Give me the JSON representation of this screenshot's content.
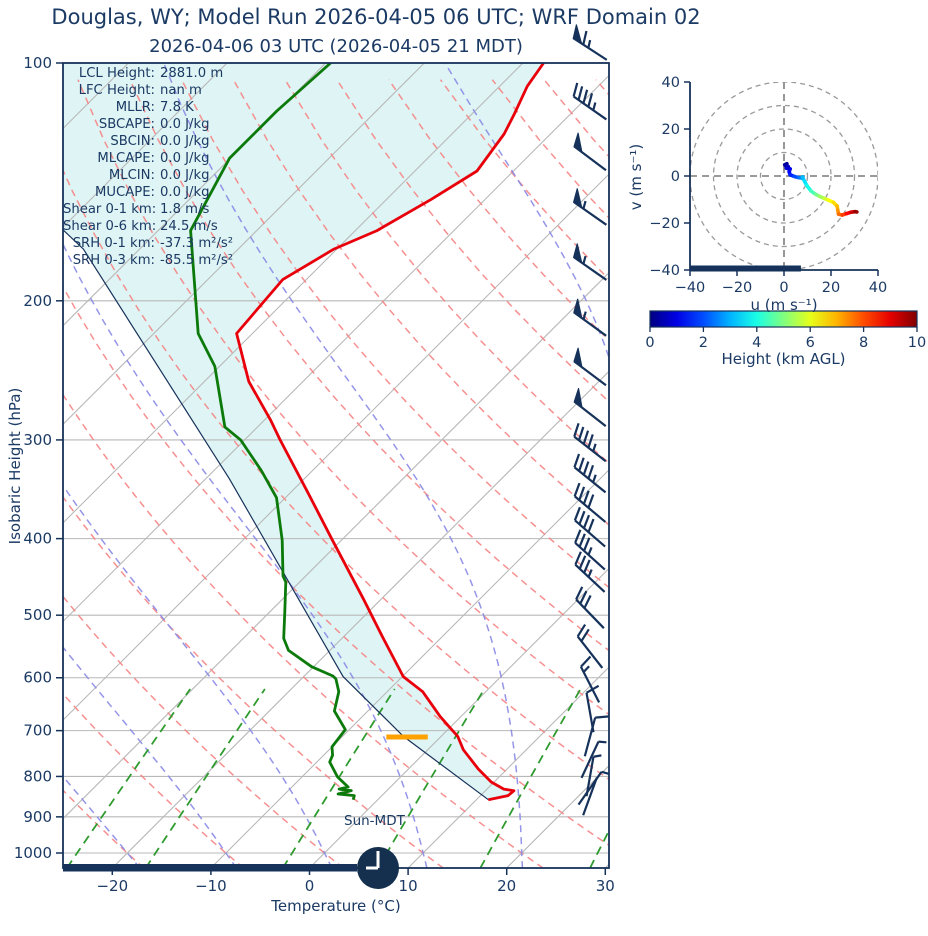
{
  "title": "Douglas, WY; Model Run 2026-04-05 06 UTC; WRF Domain 02",
  "subtitle": "2026-04-06 03 UTC  (2026-04-05 21 MDT)",
  "colors": {
    "text": "#1b3a64",
    "spine": "#16325a",
    "temperature": "#e8000b",
    "dewpoint": "#0b7a0b",
    "parcel": "#16325a",
    "shade": "#dff4f4",
    "isotherm": "#b8b8b8",
    "isobar": "#b8b8b8",
    "dry_adiabat": "#f58484",
    "moist_adiabat": "#8a8ae6",
    "mixing_ratio": "#2f9b2f",
    "lcl_marker": "#ffa200",
    "barb": "#16325a",
    "hodo_grid": "#999999",
    "clock": "#14304e"
  },
  "chart_data": [
    {
      "type": "line",
      "name": "skewt-sounding",
      "xlabel": "Temperature (°C)",
      "ylabel": "Isobaric Height (hPa)",
      "x_tick_labels": [
        "−20",
        "−10",
        "0",
        "10",
        "20",
        "30"
      ],
      "x_tick_values": [
        -20,
        -10,
        0,
        10,
        20,
        30
      ],
      "y_tick_values": [
        100,
        200,
        300,
        400,
        500,
        600,
        700,
        800,
        900,
        1000
      ],
      "xlim_c": [
        -25.0,
        30.4
      ],
      "pressure_top_hpa": 100,
      "pressure_bottom_hpa": 1045,
      "skew_deg": 45,
      "series": [
        {
          "name": "temperature",
          "points_p_t": [
            [
              100,
              -57.9
            ],
            [
              107,
              -57.2
            ],
            [
              116,
              -55.7
            ],
            [
              123,
              -54.7
            ],
            [
              137,
              -53.7
            ],
            [
              149,
              -55.5
            ],
            [
              163,
              -57.8
            ],
            [
              172,
              -60.3
            ],
            [
              188,
              -62.4
            ],
            [
              220,
              -61.6
            ],
            [
              253,
              -55.5
            ],
            [
              283,
              -49.4
            ],
            [
              300,
              -46.4
            ],
            [
              350,
              -38.2
            ],
            [
              402,
              -30.9
            ],
            [
              478,
              -21.7
            ],
            [
              532,
              -16.1
            ],
            [
              598,
              -9.9
            ],
            [
              625,
              -6.4
            ],
            [
              672,
              -2.1
            ],
            [
              712,
              1.7
            ],
            [
              740,
              3.6
            ],
            [
              783,
              7.1
            ],
            [
              813,
              9.7
            ],
            [
              830,
              11.7
            ],
            [
              834,
              12.9
            ],
            [
              846,
              12.8
            ],
            [
              856,
              11.2
            ]
          ]
        },
        {
          "name": "dewpoint",
          "points_p_t": [
            [
              100,
              -79.5
            ],
            [
              115,
              -80.1
            ],
            [
              132,
              -80.1
            ],
            [
              163,
              -76.7
            ],
            [
              220,
              -65.5
            ],
            [
              242,
              -60.5
            ],
            [
              289,
              -53.3
            ],
            [
              300,
              -50.4
            ],
            [
              328,
              -45.2
            ],
            [
              355,
              -40.9
            ],
            [
              402,
              -36.0
            ],
            [
              446,
              -32.3
            ],
            [
              454,
              -31.4
            ],
            [
              495,
              -28.5
            ],
            [
              535,
              -25.9
            ],
            [
              554,
              -24.2
            ],
            [
              581,
              -20.2
            ],
            [
              597,
              -17.1
            ],
            [
              602,
              -16.5
            ],
            [
              625,
              -14.9
            ],
            [
              661,
              -13.4
            ],
            [
              698,
              -10.4
            ],
            [
              734,
              -10.0
            ],
            [
              752,
              -9.1
            ],
            [
              767,
              -8.7
            ],
            [
              801,
              -6.4
            ],
            [
              825,
              -4.3
            ],
            [
              830,
              -5.0
            ],
            [
              834,
              -3.6
            ],
            [
              842,
              -4.6
            ],
            [
              846,
              -2.8
            ],
            [
              856,
              -2.5
            ]
          ]
        },
        {
          "name": "parcel",
          "points_p_t": [
            [
              162,
              -90.0
            ],
            [
              172,
              -85.7
            ],
            [
              336,
              -47.6
            ],
            [
              598,
              -16.0
            ],
            [
              712,
              -3.8
            ],
            [
              856,
              11.2
            ]
          ]
        }
      ],
      "lcl_marker": {
        "pressure_hpa": 713,
        "temp_c": -3.4,
        "halfwidth_c": 2.1
      },
      "wind_barbs_p_kt_dir": [
        [
          96,
          65,
          303
        ],
        [
          114,
          45,
          305
        ],
        [
          132,
          50,
          307
        ],
        [
          155,
          55,
          305
        ],
        [
          182,
          58,
          305
        ],
        [
          214,
          55,
          306
        ],
        [
          247,
          52,
          307
        ],
        [
          278,
          50,
          308
        ],
        [
          308,
          48,
          308
        ],
        [
          337,
          45,
          309
        ],
        [
          367,
          42,
          310
        ],
        [
          394,
          40,
          311
        ],
        [
          421,
          38,
          312
        ],
        [
          449,
          35,
          313
        ],
        [
          498,
          30,
          316
        ],
        [
          557,
          22,
          322
        ],
        [
          612,
          15,
          333
        ],
        [
          664,
          12,
          350
        ],
        [
          713,
          10,
          15
        ],
        [
          762,
          8,
          25
        ],
        [
          800,
          6,
          10
        ],
        [
          828,
          5,
          35
        ],
        [
          848,
          4,
          20
        ]
      ],
      "background": {
        "isobars_hpa": {
          "min": 100,
          "max": 1000,
          "step": 100
        },
        "isotherms_c": {
          "min": -120,
          "max": 30,
          "step": 10
        },
        "dry_adiabats_theta_c": {
          "min": -40,
          "max": 150,
          "step": 10
        },
        "moist_adiabats_t1000_c": {
          "min": -40,
          "max": 40,
          "step": 10
        },
        "mixing_ratio_g_kg": [
          0.5,
          1,
          3,
          6,
          12,
          24
        ]
      },
      "stats": [
        {
          "label": "LCL Height:",
          "value": "2881.0 m"
        },
        {
          "label": "LFC Height:",
          "value": "nan m"
        },
        {
          "label": "MLLR:",
          "value": "7.8 K"
        },
        {
          "label": "SBCAPE:",
          "value": "0.0 J/kg"
        },
        {
          "label": "SBCIN:",
          "value": "0.0 J/kg"
        },
        {
          "label": "MLCAPE:",
          "value": "0.0 J/kg"
        },
        {
          "label": "MLCIN:",
          "value": "0.0 J/kg"
        },
        {
          "label": "MUCAPE:",
          "value": "0.0 J/kg"
        },
        {
          "label": "Shear 0-1 km:",
          "value": "1.8 m/s"
        },
        {
          "label": "Shear 0-6 km:",
          "value": "24.5 m/s"
        },
        {
          "label": "SRH 0-1 km:",
          "value": "-37.3 m²/s²"
        },
        {
          "label": "SRH 0-3 km:",
          "value": "-85.5 m²/s²"
        }
      ],
      "sun_label": "Sun-MDT",
      "clock_time": "21:00"
    },
    {
      "type": "line",
      "name": "hodograph",
      "xlabel": "u (m s⁻¹)",
      "ylabel": "v (m s⁻¹)",
      "tick_labels": [
        "−40",
        "−20",
        "0",
        "20",
        "40"
      ],
      "tick_values": [
        -40,
        -20,
        0,
        20,
        40
      ],
      "ring_radii_ms": [
        10,
        20,
        30,
        40
      ],
      "ground_bar_u_ms": [
        -40,
        7.2
      ],
      "trace_u_v_km": [
        [
          0.3,
          4.8,
          0.0
        ],
        [
          1.2,
          5.2,
          0.15
        ],
        [
          0.6,
          4.4,
          0.3
        ],
        [
          1.8,
          4.0,
          0.5
        ],
        [
          1.0,
          3.3,
          0.7
        ],
        [
          2.6,
          3.0,
          0.9
        ],
        [
          2.2,
          1.8,
          1.1
        ],
        [
          2.6,
          0.5,
          1.4
        ],
        [
          4.4,
          -0.2,
          1.8
        ],
        [
          6.3,
          -0.7,
          2.2
        ],
        [
          7.6,
          -0.9,
          2.6
        ],
        [
          7.9,
          -0.4,
          2.9
        ],
        [
          8.7,
          -2.2,
          3.3
        ],
        [
          9.8,
          -4.2,
          3.7
        ],
        [
          11.5,
          -6.4,
          4.2
        ],
        [
          13.5,
          -7.8,
          4.7
        ],
        [
          15.2,
          -8.7,
          5.1
        ],
        [
          17.3,
          -9.6,
          5.6
        ],
        [
          18.9,
          -10.3,
          6.0
        ],
        [
          21.0,
          -11.2,
          6.4
        ],
        [
          22.6,
          -12.8,
          6.8
        ],
        [
          22.9,
          -14.6,
          7.1
        ],
        [
          23.2,
          -16.2,
          7.5
        ],
        [
          24.8,
          -16.6,
          7.9
        ],
        [
          26.6,
          -16.0,
          8.4
        ],
        [
          28.5,
          -15.4,
          9.0
        ],
        [
          30.2,
          -15.2,
          9.5
        ],
        [
          31.0,
          -15.3,
          10.0
        ]
      ]
    }
  ],
  "colorbar": {
    "label": "Height (km AGL)",
    "ticks": [
      0,
      2,
      4,
      6,
      8,
      10
    ],
    "min": 0,
    "max": 10
  }
}
